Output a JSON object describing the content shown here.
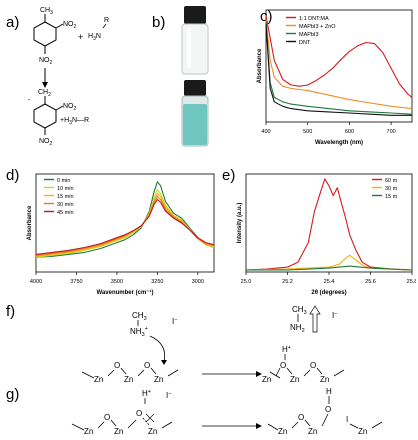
{
  "panels": {
    "a": {
      "label": "a)",
      "reactant1": {
        "ch3": "CH",
        "ch3_sub": "3",
        "no2_top": "NO",
        "no2_top_sub": "2",
        "no2_bottom": "NO",
        "no2_bottom_sub": "2"
      },
      "plus": "+",
      "reactant2": {
        "r": "R",
        "h3n": "H",
        "h3n_sub": "3",
        "h3n_n": "N"
      },
      "product": {
        "ch2": "CH",
        "ch2_sub": "2",
        "minus": "-",
        "no2_top": "NO",
        "no2_top_sub": "2",
        "h3n": "+H",
        "h3n_sub": "3",
        "h3n_rest": "N—R",
        "no2_bottom": "NO",
        "no2_bottom_sub": "2"
      }
    },
    "b": {
      "label": "b)",
      "vial_top_color": "#ffffff",
      "vial_bottom_color": "#6fc6bf",
      "cap_color": "#1a1a1a"
    },
    "c": {
      "label": "c)"
    },
    "d": {
      "label": "d)"
    },
    "e": {
      "label": "e)"
    },
    "f": {
      "label": "f)",
      "left": {
        "ch3": "CH",
        "ch3_sub": "3",
        "nh3": "NH",
        "nh3_sub": "3",
        "nh3_sup": "+",
        "iodide": "I",
        "iodide_sup": "−",
        "zn": [
          "Zn",
          "Zn",
          "Zn"
        ],
        "o": [
          "O",
          "O"
        ]
      },
      "right": {
        "ch3": "CH",
        "ch3_sub": "3",
        "nh2": "NH",
        "nh2_sub": "2",
        "iodide": "I",
        "iodide_sup": "−",
        "h": "H",
        "h_sup": "+",
        "zn": [
          "Zn",
          "Zn",
          "Zn"
        ],
        "o": [
          "O",
          "O"
        ]
      }
    },
    "g": {
      "label": "g)",
      "left": {
        "h": "H",
        "h_sup": "+",
        "iodide": "I",
        "iodide_sup": "−",
        "zn": [
          "Zn",
          "Zn",
          "Zn"
        ],
        "o": [
          "O",
          "O"
        ]
      },
      "right": {
        "h": "H",
        "o_top": "O",
        "iodide": "I",
        "zn": [
          "Zn",
          "Zn",
          "Zn"
        ],
        "o": [
          "O"
        ]
      }
    }
  },
  "chart_data": [
    {
      "type": "line",
      "panel": "c",
      "title": "",
      "xlabel": "Wavelength (nm)",
      "ylabel": "Absorbance",
      "xlim": [
        400,
        750
      ],
      "ylim": [
        0,
        1.0
      ],
      "xticks": [
        400,
        500,
        600,
        700
      ],
      "legend_position": "top-left",
      "series": [
        {
          "name": "1:1 DNT:MA",
          "color": "#d7191c",
          "x": [
            400,
            420,
            440,
            460,
            480,
            500,
            520,
            540,
            560,
            580,
            600,
            620,
            640,
            660,
            680,
            700,
            720,
            740,
            750
          ],
          "y": [
            0.95,
            0.55,
            0.38,
            0.33,
            0.32,
            0.33,
            0.37,
            0.42,
            0.48,
            0.56,
            0.63,
            0.68,
            0.71,
            0.7,
            0.62,
            0.48,
            0.34,
            0.25,
            0.22
          ]
        },
        {
          "name": "MAPbI3 + ZnO",
          "color": "#f28c28",
          "x": [
            400,
            410,
            420,
            440,
            460,
            480,
            500,
            550,
            600,
            650,
            700,
            750
          ],
          "y": [
            0.92,
            0.55,
            0.4,
            0.32,
            0.3,
            0.29,
            0.28,
            0.24,
            0.2,
            0.17,
            0.14,
            0.12
          ]
        },
        {
          "name": "MAPbI3",
          "color": "#1f7a3c",
          "x": [
            400,
            410,
            420,
            440,
            460,
            480,
            500,
            550,
            600,
            650,
            700,
            750
          ],
          "y": [
            0.9,
            0.35,
            0.22,
            0.18,
            0.16,
            0.15,
            0.14,
            0.12,
            0.1,
            0.09,
            0.08,
            0.07
          ]
        },
        {
          "name": "DNT",
          "color": "#111111",
          "x": [
            400,
            410,
            420,
            440,
            460,
            480,
            500,
            550,
            600,
            650,
            700,
            750
          ],
          "y": [
            0.88,
            0.3,
            0.18,
            0.14,
            0.12,
            0.11,
            0.1,
            0.09,
            0.08,
            0.07,
            0.06,
            0.06
          ]
        }
      ]
    },
    {
      "type": "line",
      "panel": "d",
      "title": "",
      "xlabel": "Wavenumber (cm⁻¹)",
      "ylabel": "Absorbance",
      "xlim": [
        4000,
        2900
      ],
      "ylim": [
        0,
        1.0
      ],
      "xticks": [
        4000,
        3750,
        3500,
        3250,
        3000
      ],
      "legend_position": "top-left",
      "series": [
        {
          "name": "0 min",
          "color": "#1f7a3c",
          "x": [
            4000,
            3900,
            3800,
            3700,
            3600,
            3500,
            3450,
            3400,
            3350,
            3300,
            3270,
            3250,
            3230,
            3200,
            3150,
            3100,
            3050,
            3000,
            2950,
            2900
          ],
          "y": [
            0.15,
            0.16,
            0.18,
            0.2,
            0.24,
            0.3,
            0.33,
            0.38,
            0.45,
            0.62,
            0.82,
            0.92,
            0.88,
            0.72,
            0.6,
            0.55,
            0.45,
            0.35,
            0.28,
            0.25
          ]
        },
        {
          "name": "10 min",
          "color": "#c7d22c",
          "x": [
            4000,
            3900,
            3800,
            3700,
            3600,
            3500,
            3450,
            3400,
            3350,
            3300,
            3270,
            3250,
            3230,
            3200,
            3150,
            3100,
            3050,
            3000,
            2950,
            2900
          ],
          "y": [
            0.15,
            0.17,
            0.19,
            0.22,
            0.26,
            0.32,
            0.35,
            0.4,
            0.46,
            0.6,
            0.76,
            0.84,
            0.8,
            0.68,
            0.58,
            0.53,
            0.44,
            0.34,
            0.28,
            0.25
          ]
        },
        {
          "name": "15 min",
          "color": "#f5b400",
          "x": [
            4000,
            3900,
            3800,
            3700,
            3600,
            3500,
            3450,
            3400,
            3350,
            3300,
            3270,
            3250,
            3230,
            3200,
            3150,
            3100,
            3050,
            3000,
            2950,
            2900
          ],
          "y": [
            0.16,
            0.18,
            0.2,
            0.23,
            0.27,
            0.33,
            0.36,
            0.41,
            0.47,
            0.59,
            0.73,
            0.8,
            0.77,
            0.66,
            0.57,
            0.52,
            0.43,
            0.34,
            0.28,
            0.26
          ]
        },
        {
          "name": "30 min",
          "color": "#e8742a",
          "x": [
            4000,
            3900,
            3800,
            3700,
            3600,
            3500,
            3450,
            3400,
            3350,
            3300,
            3270,
            3250,
            3230,
            3200,
            3150,
            3100,
            3050,
            3000,
            2950,
            2900
          ],
          "y": [
            0.17,
            0.19,
            0.21,
            0.24,
            0.28,
            0.34,
            0.37,
            0.42,
            0.47,
            0.58,
            0.71,
            0.77,
            0.74,
            0.64,
            0.56,
            0.51,
            0.43,
            0.34,
            0.29,
            0.27
          ]
        },
        {
          "name": "45 min",
          "color": "#c0151b",
          "x": [
            4000,
            3900,
            3800,
            3700,
            3600,
            3500,
            3450,
            3400,
            3350,
            3300,
            3270,
            3250,
            3230,
            3200,
            3150,
            3100,
            3050,
            3000,
            2950,
            2900
          ],
          "y": [
            0.18,
            0.2,
            0.22,
            0.25,
            0.29,
            0.35,
            0.38,
            0.42,
            0.47,
            0.57,
            0.69,
            0.74,
            0.71,
            0.62,
            0.55,
            0.5,
            0.43,
            0.35,
            0.3,
            0.28
          ]
        }
      ]
    },
    {
      "type": "line",
      "panel": "e",
      "title": "",
      "xlabel": "2θ (degrees)",
      "ylabel": "Intensity (a.u.)",
      "xlim": [
        25.0,
        25.8
      ],
      "ylim": [
        0,
        1.0
      ],
      "xticks": [
        25.0,
        25.2,
        25.4,
        25.6,
        25.8
      ],
      "legend_position": "top-right",
      "series": [
        {
          "name": "60 m",
          "color": "#d7191c",
          "x": [
            25.0,
            25.1,
            25.2,
            25.25,
            25.3,
            25.33,
            25.36,
            25.38,
            25.4,
            25.42,
            25.44,
            25.46,
            25.48,
            25.5,
            25.53,
            25.56,
            25.6,
            25.7,
            25.8
          ],
          "y": [
            0.02,
            0.03,
            0.05,
            0.1,
            0.3,
            0.62,
            0.82,
            0.95,
            0.88,
            0.78,
            0.86,
            0.7,
            0.55,
            0.38,
            0.22,
            0.1,
            0.05,
            0.03,
            0.02
          ]
        },
        {
          "name": "30 m",
          "color": "#f5b400",
          "x": [
            25.0,
            25.2,
            25.3,
            25.4,
            25.45,
            25.48,
            25.5,
            25.53,
            25.56,
            25.6,
            25.7,
            25.8
          ],
          "y": [
            0.02,
            0.03,
            0.04,
            0.05,
            0.08,
            0.14,
            0.17,
            0.12,
            0.07,
            0.04,
            0.03,
            0.02
          ]
        },
        {
          "name": "15 m",
          "color": "#1f7a3c",
          "x": [
            25.0,
            25.2,
            25.3,
            25.4,
            25.45,
            25.5,
            25.55,
            25.6,
            25.7,
            25.8
          ],
          "y": [
            0.02,
            0.02,
            0.03,
            0.04,
            0.05,
            0.06,
            0.05,
            0.04,
            0.03,
            0.02
          ]
        }
      ]
    }
  ]
}
